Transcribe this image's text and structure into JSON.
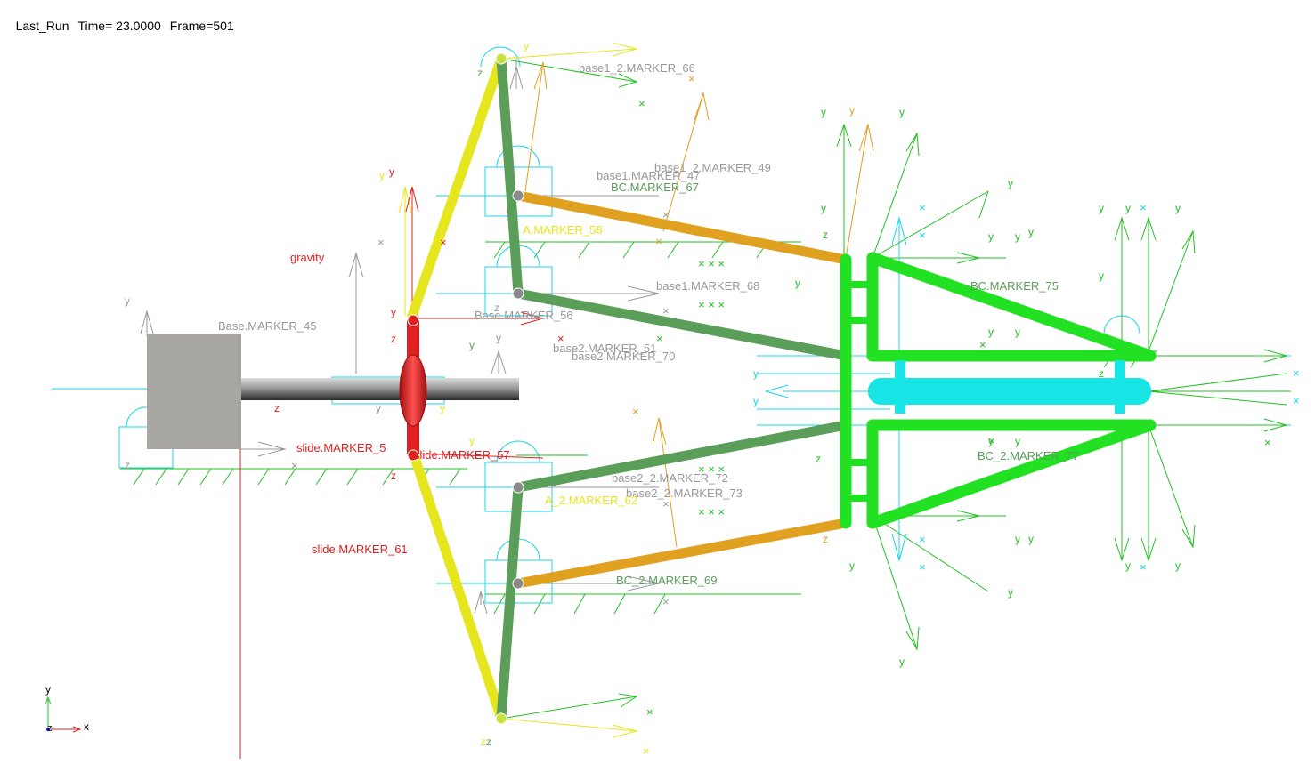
{
  "status": {
    "run_name": "Last_Run",
    "time": "Time= 23.0000",
    "frame": "Frame=501"
  },
  "colors": {
    "yellow_link": "#e6e61e",
    "dark_green_link": "#5a9e5a",
    "orange_link": "#e0a020",
    "bright_green": "#22e022",
    "cyan": "#18e6e6",
    "red": "#e02020",
    "gray_label": "#999999",
    "ground_green": "#22c022"
  },
  "labels": [
    {
      "id": "base1_2-marker_66",
      "text": "base1_2.MARKER_66",
      "color": "#999999"
    },
    {
      "id": "base1_2-marker_49",
      "text": "base1_2.MARKER_49",
      "color": "#999999"
    },
    {
      "id": "base1-marker_47",
      "text": "base1.MARKER_47",
      "color": "#999999"
    },
    {
      "id": "bc-marker_67",
      "text": "BC.MARKER_67",
      "color": "#5a9e5a"
    },
    {
      "id": "a-marker_58",
      "text": "A.MARKER_58",
      "color": "#e6e61e"
    },
    {
      "id": "base1-marker_68",
      "text": "base1.MARKER_68",
      "color": "#999999"
    },
    {
      "id": "base-marker_56",
      "text": "Base.MARKER_56",
      "color": "#999999"
    },
    {
      "id": "base2-marker_51",
      "text": "base2.MARKER_51",
      "color": "#999999"
    },
    {
      "id": "base2-marker_70",
      "text": "base2.MARKER_70",
      "color": "#999999"
    },
    {
      "id": "base-marker_45",
      "text": "Base.MARKER_45",
      "color": "#999999"
    },
    {
      "id": "gravity",
      "text": "gravity",
      "color": "#e02020"
    },
    {
      "id": "slide-marker_5x",
      "text": "slide.MARKER_5",
      "color": "#e02020"
    },
    {
      "id": "slide-marker_57",
      "text": "slide.MARKER_57",
      "color": "#e02020"
    },
    {
      "id": "base2_2-marker_72",
      "text": "base2_2.MARKER_72",
      "color": "#999999"
    },
    {
      "id": "base2_2-marker_73",
      "text": "base2_2.MARKER_73",
      "color": "#999999"
    },
    {
      "id": "a_2-marker_62",
      "text": "A_2.MARKER_62",
      "color": "#e6e61e"
    },
    {
      "id": "slide-marker_61",
      "text": "slide.MARKER_61",
      "color": "#e02020"
    },
    {
      "id": "bc_2-marker_69",
      "text": "BC_2.MARKER_69",
      "color": "#5a9e5a"
    },
    {
      "id": "bc-marker_75",
      "text": "BC.MARKER_75",
      "color": "#5a9e5a"
    },
    {
      "id": "bc_2-marker_77",
      "text": "BC_2.MARKER_77",
      "color": "#5a9e5a"
    }
  ],
  "triad": {
    "y": "y",
    "z": "z",
    "x": "x"
  },
  "axis_letters": {
    "x": "x",
    "y": "y",
    "z": "z"
  }
}
